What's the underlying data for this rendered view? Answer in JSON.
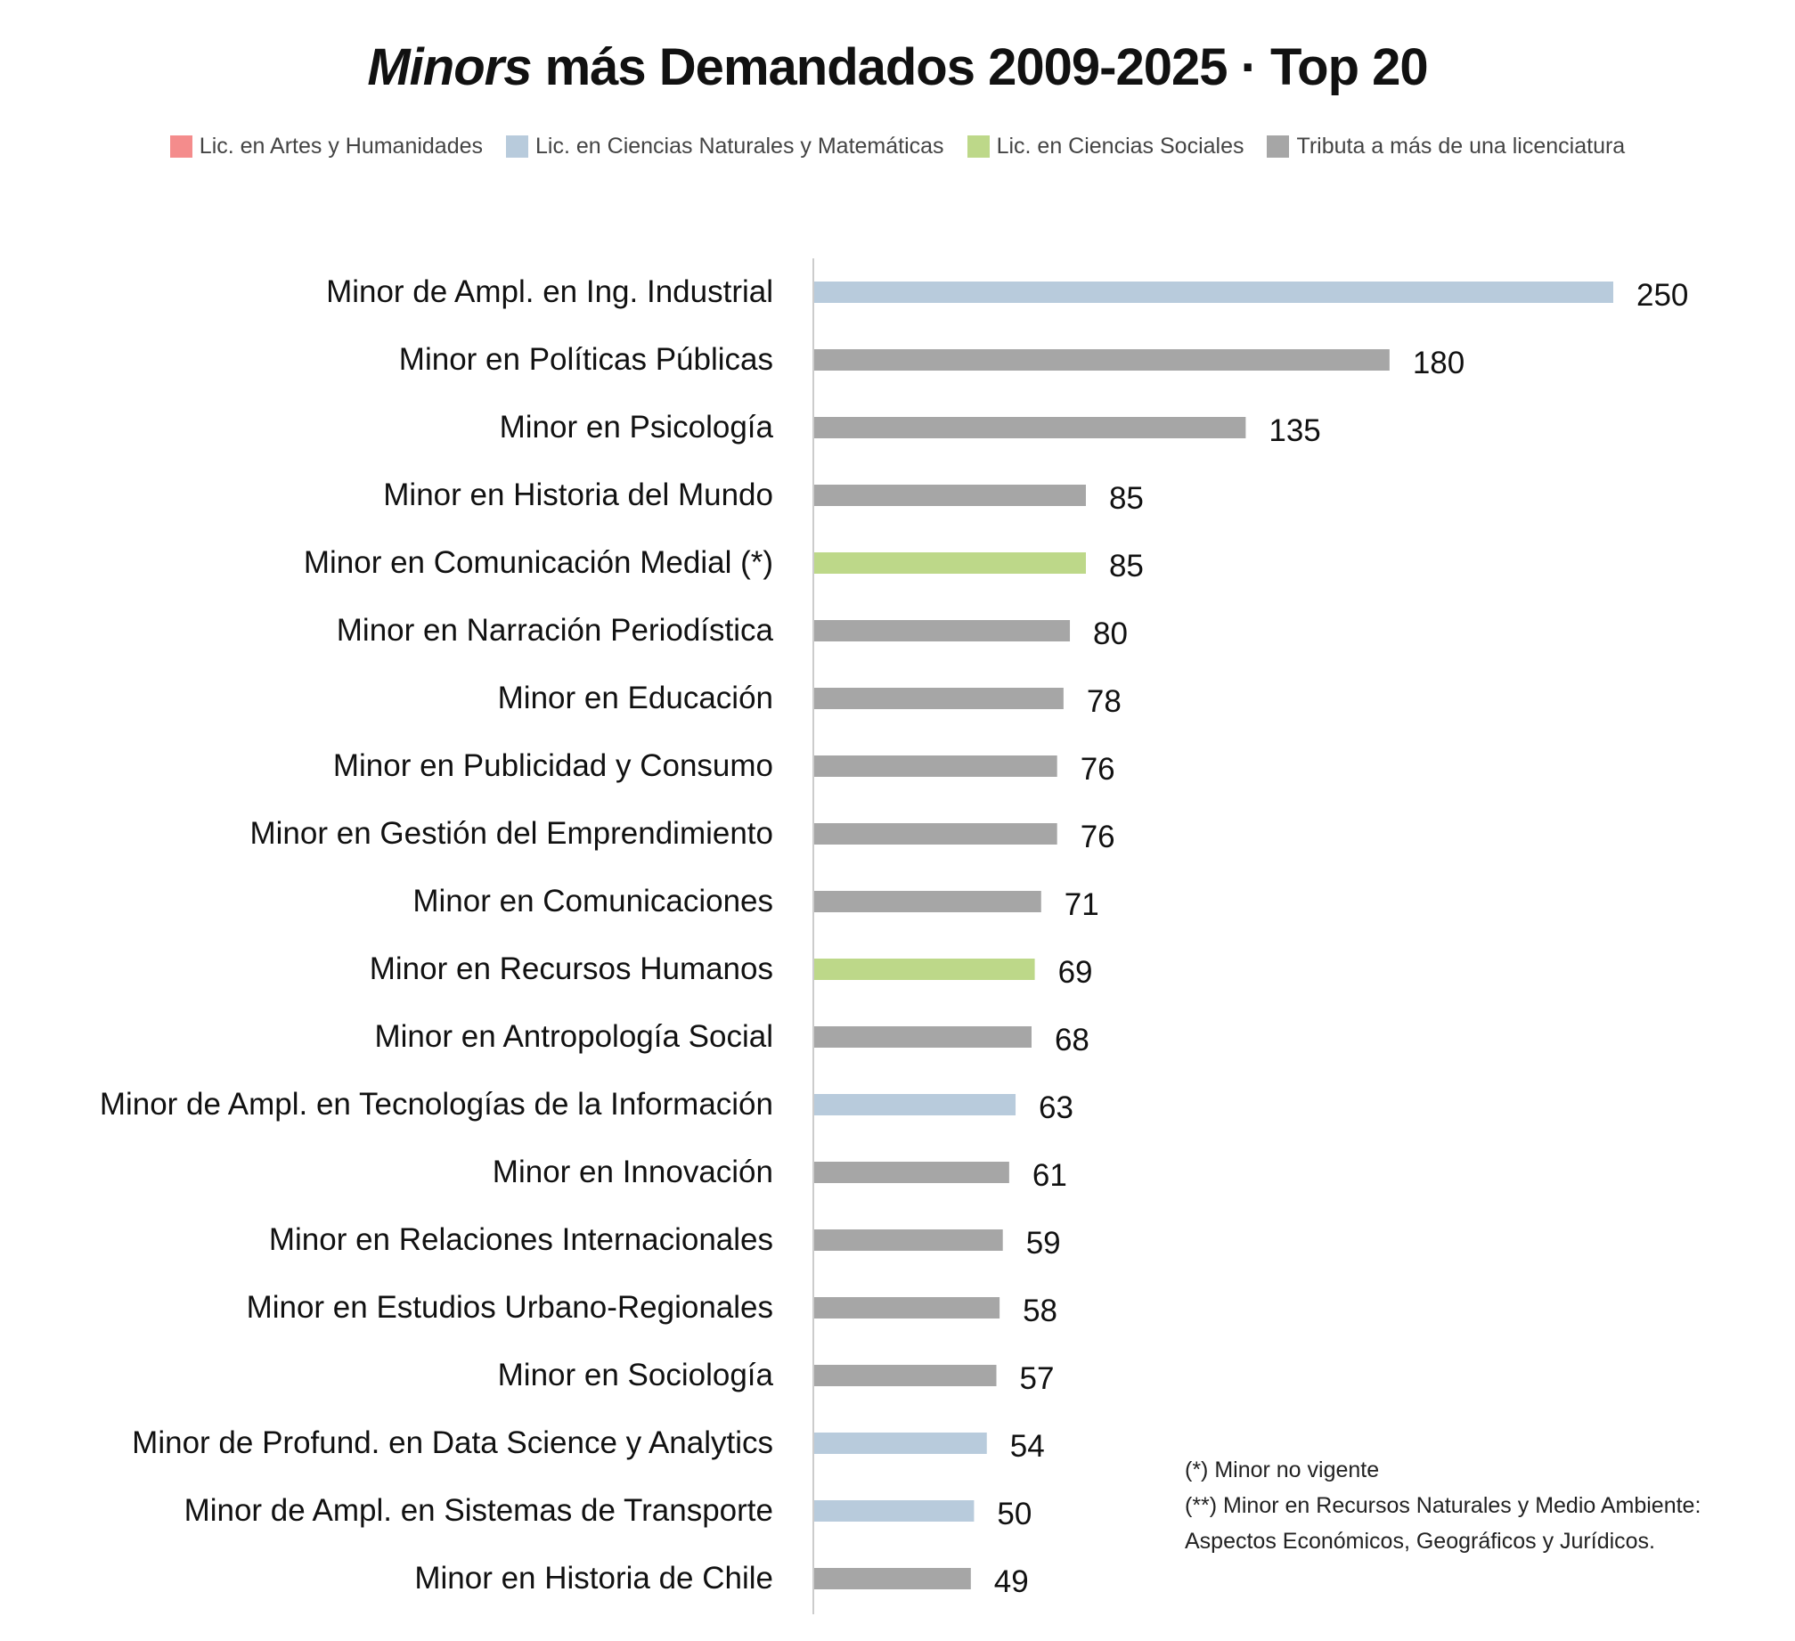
{
  "title": {
    "italic_part": "Minors",
    "rest": " más Demandados 2009-2025 · Top 20"
  },
  "legend": [
    {
      "label": "Lic. en Artes y Humanidades",
      "color": "#f48c8c"
    },
    {
      "label": "Lic. en Ciencias Naturales y Matemáticas",
      "color": "#b8cbdc"
    },
    {
      "label": "Lic. en Ciencias Sociales",
      "color": "#bdd889"
    },
    {
      "label": "Tributa a más de una licenciatura",
      "color": "#a6a6a6"
    }
  ],
  "notes": [
    "(*) Minor no vigente",
    "(**) Minor en Recursos Naturales y Medio Ambiente: Aspectos Económicos, Geográficos y Jurídicos."
  ],
  "chart_data": {
    "type": "bar",
    "orientation": "horizontal",
    "xlim": [
      0,
      250
    ],
    "grid": false,
    "legend_position": "top",
    "categories": [
      "Minor de Ampl. en Ing. Industrial",
      "Minor en Políticas Públicas",
      "Minor en Psicología",
      "Minor en Historia del Mundo",
      "Minor en Comunicación Medial (*)",
      "Minor en Narración Periodística",
      "Minor en Educación",
      "Minor en Publicidad y Consumo",
      "Minor en Gestión del Emprendimiento",
      "Minor en Comunicaciones",
      "Minor en Recursos Humanos",
      "Minor en Antropología Social",
      "Minor de Ampl. en Tecnologías de la Información",
      "Minor en Innovación",
      "Minor en Relaciones Internacionales",
      "Minor en Estudios Urbano-Regionales",
      "Minor en Sociología",
      "Minor de Profund. en Data Science y Analytics",
      "Minor de Ampl. en Sistemas de Transporte",
      "Minor en Historia de Chile"
    ],
    "values": [
      250,
      180,
      135,
      85,
      85,
      80,
      78,
      76,
      76,
      71,
      69,
      68,
      63,
      61,
      59,
      58,
      57,
      54,
      50,
      49
    ],
    "groups": [
      "Lic. en Ciencias Naturales y Matemáticas",
      "Tributa a más de una licenciatura",
      "Tributa a más de una licenciatura",
      "Tributa a más de una licenciatura",
      "Lic. en Ciencias Sociales",
      "Tributa a más de una licenciatura",
      "Tributa a más de una licenciatura",
      "Tributa a más de una licenciatura",
      "Tributa a más de una licenciatura",
      "Tributa a más de una licenciatura",
      "Lic. en Ciencias Sociales",
      "Tributa a más de una licenciatura",
      "Lic. en Ciencias Naturales y Matemáticas",
      "Tributa a más de una licenciatura",
      "Tributa a más de una licenciatura",
      "Tributa a más de una licenciatura",
      "Tributa a más de una licenciatura",
      "Lic. en Ciencias Naturales y Matemáticas",
      "Lic. en Ciencias Naturales y Matemáticas",
      "Tributa a más de una licenciatura"
    ],
    "colors": [
      "#b8cbdc",
      "#a6a6a6",
      "#a6a6a6",
      "#a6a6a6",
      "#bdd889",
      "#a6a6a6",
      "#a6a6a6",
      "#a6a6a6",
      "#a6a6a6",
      "#a6a6a6",
      "#bdd889",
      "#a6a6a6",
      "#b8cbdc",
      "#a6a6a6",
      "#a6a6a6",
      "#a6a6a6",
      "#a6a6a6",
      "#b8cbdc",
      "#b8cbdc",
      "#a6a6a6"
    ]
  }
}
